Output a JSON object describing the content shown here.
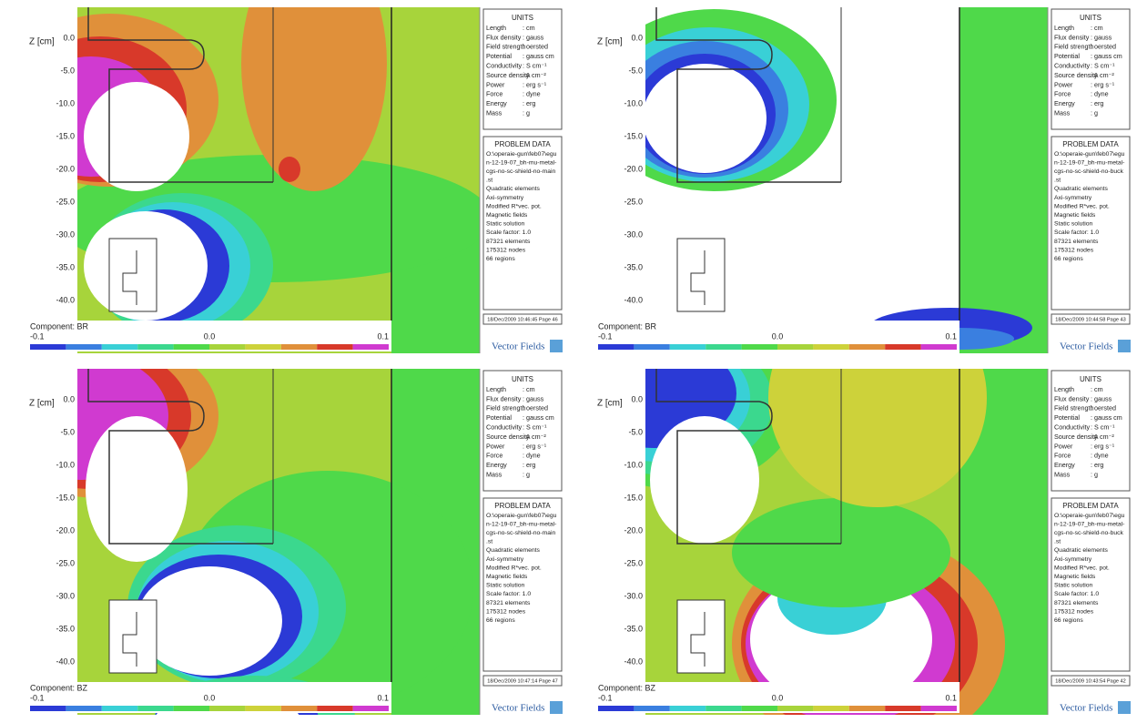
{
  "axis_label": "Z [cm]",
  "yticks": [
    "0.0",
    "-5.0",
    "-10.0",
    "-15.0",
    "-20.0",
    "-25.0",
    "-30.0",
    "-35.0",
    "-40.0"
  ],
  "colorbar": {
    "min": "-0.1",
    "mid": "0.0",
    "max": "0.1"
  },
  "logo": "Vector Fields",
  "units": {
    "title": "UNITS",
    "rows": [
      [
        "Length",
        ": cm"
      ],
      [
        "Flux density",
        ": gauss"
      ],
      [
        "Field strength",
        ": oersted"
      ],
      [
        "Potential",
        ": gauss cm"
      ],
      [
        "Conductivity",
        ": S cm⁻¹"
      ],
      [
        "Source density",
        ": A cm⁻²"
      ],
      [
        "Power",
        ": erg s⁻¹"
      ],
      [
        "Force",
        ": dyne"
      ],
      [
        "Energy",
        ": erg"
      ],
      [
        "Mass",
        ": g"
      ]
    ]
  },
  "panels": [
    {
      "component": "Component: BR",
      "timestamp": "18/Dec/2009 10:46:45 Page 46",
      "problem": {
        "title": "PROBLEM DATA",
        "lines": [
          "O:\\operaie-gun\\feb07\\egu",
          "n-12-19-07_bh-mu-metal-",
          "cgs-no-sc-shield-no-main",
          ".st",
          "Quadratic elements",
          "Axi-symmetry",
          "Modified R*vec. pot.",
          "Magnetic fields",
          "Static solution",
          "Scale factor: 1.0",
          "87321 elements",
          "175312 nodes",
          "66 regions"
        ]
      }
    },
    {
      "component": "Component: BR",
      "timestamp": "18/Dec/2009 10:44:58 Page 43",
      "problem": {
        "title": "PROBLEM DATA",
        "lines": [
          "O:\\operaie-gun\\feb07\\egu",
          "n-12-19-07_bh-mu-metal-",
          "cgs-no-sc-shield-no-buck",
          ".st",
          "Quadratic elements",
          "Axi-symmetry",
          "Modified R*vec. pot.",
          "Magnetic fields",
          "Static solution",
          "Scale factor: 1.0",
          "87321 elements",
          "175312 nodes",
          "66 regions"
        ]
      }
    },
    {
      "component": "Component: BZ",
      "timestamp": "18/Dec/2009 10:47:14 Page 47",
      "problem": {
        "title": "PROBLEM DATA",
        "lines": [
          "O:\\operaie-gun\\feb07\\egu",
          "n-12-19-07_bh-mu-metal-",
          "cgs-no-sc-shield-no-main",
          ".st",
          "Quadratic elements",
          "Axi-symmetry",
          "Modified R*vec. pot.",
          "Magnetic fields",
          "Static solution",
          "Scale factor: 1.0",
          "87321 elements",
          "175312 nodes",
          "66 regions"
        ]
      }
    },
    {
      "component": "Component: BZ",
      "timestamp": "18/Dec/2009 10:43:54 Page 42",
      "problem": {
        "title": "PROBLEM DATA",
        "lines": [
          "O:\\operaie-gun\\feb07\\egu",
          "n-12-19-07_bh-mu-metal-",
          "cgs-no-sc-shield-no-buck",
          ".st",
          "Quadratic elements",
          "Axi-symmetry",
          "Modified R*vec. pot.",
          "Magnetic fields",
          "Static solution",
          "Scale factor: 1.0",
          "87321 elements",
          "175312 nodes",
          "66 regions"
        ]
      }
    }
  ]
}
